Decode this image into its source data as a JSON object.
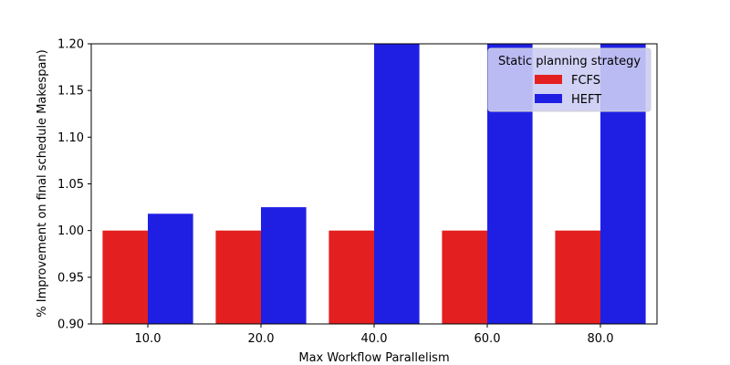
{
  "chart_data": {
    "type": "bar",
    "xlabel": "Max Workflow Parallelism",
    "ylabel": "% Improvement on final schedule Makespan)",
    "categories": [
      "10.0",
      "20.0",
      "40.0",
      "60.0",
      "80.0"
    ],
    "ylim": [
      0.9,
      1.2
    ],
    "yticks": [
      "0.90",
      "0.95",
      "1.00",
      "1.05",
      "1.10",
      "1.15",
      "1.20"
    ],
    "grid": false,
    "legend": {
      "title": "Static planning strategy",
      "placement": "top-right"
    },
    "series": [
      {
        "name": "FCFS",
        "color": "#e41f1f",
        "values": [
          1.0,
          1.0,
          1.0,
          1.0,
          1.0
        ]
      },
      {
        "name": "HEFT",
        "color": "#1f1fe4",
        "values": [
          1.018,
          1.025,
          1.2,
          1.2,
          1.2
        ]
      }
    ]
  }
}
